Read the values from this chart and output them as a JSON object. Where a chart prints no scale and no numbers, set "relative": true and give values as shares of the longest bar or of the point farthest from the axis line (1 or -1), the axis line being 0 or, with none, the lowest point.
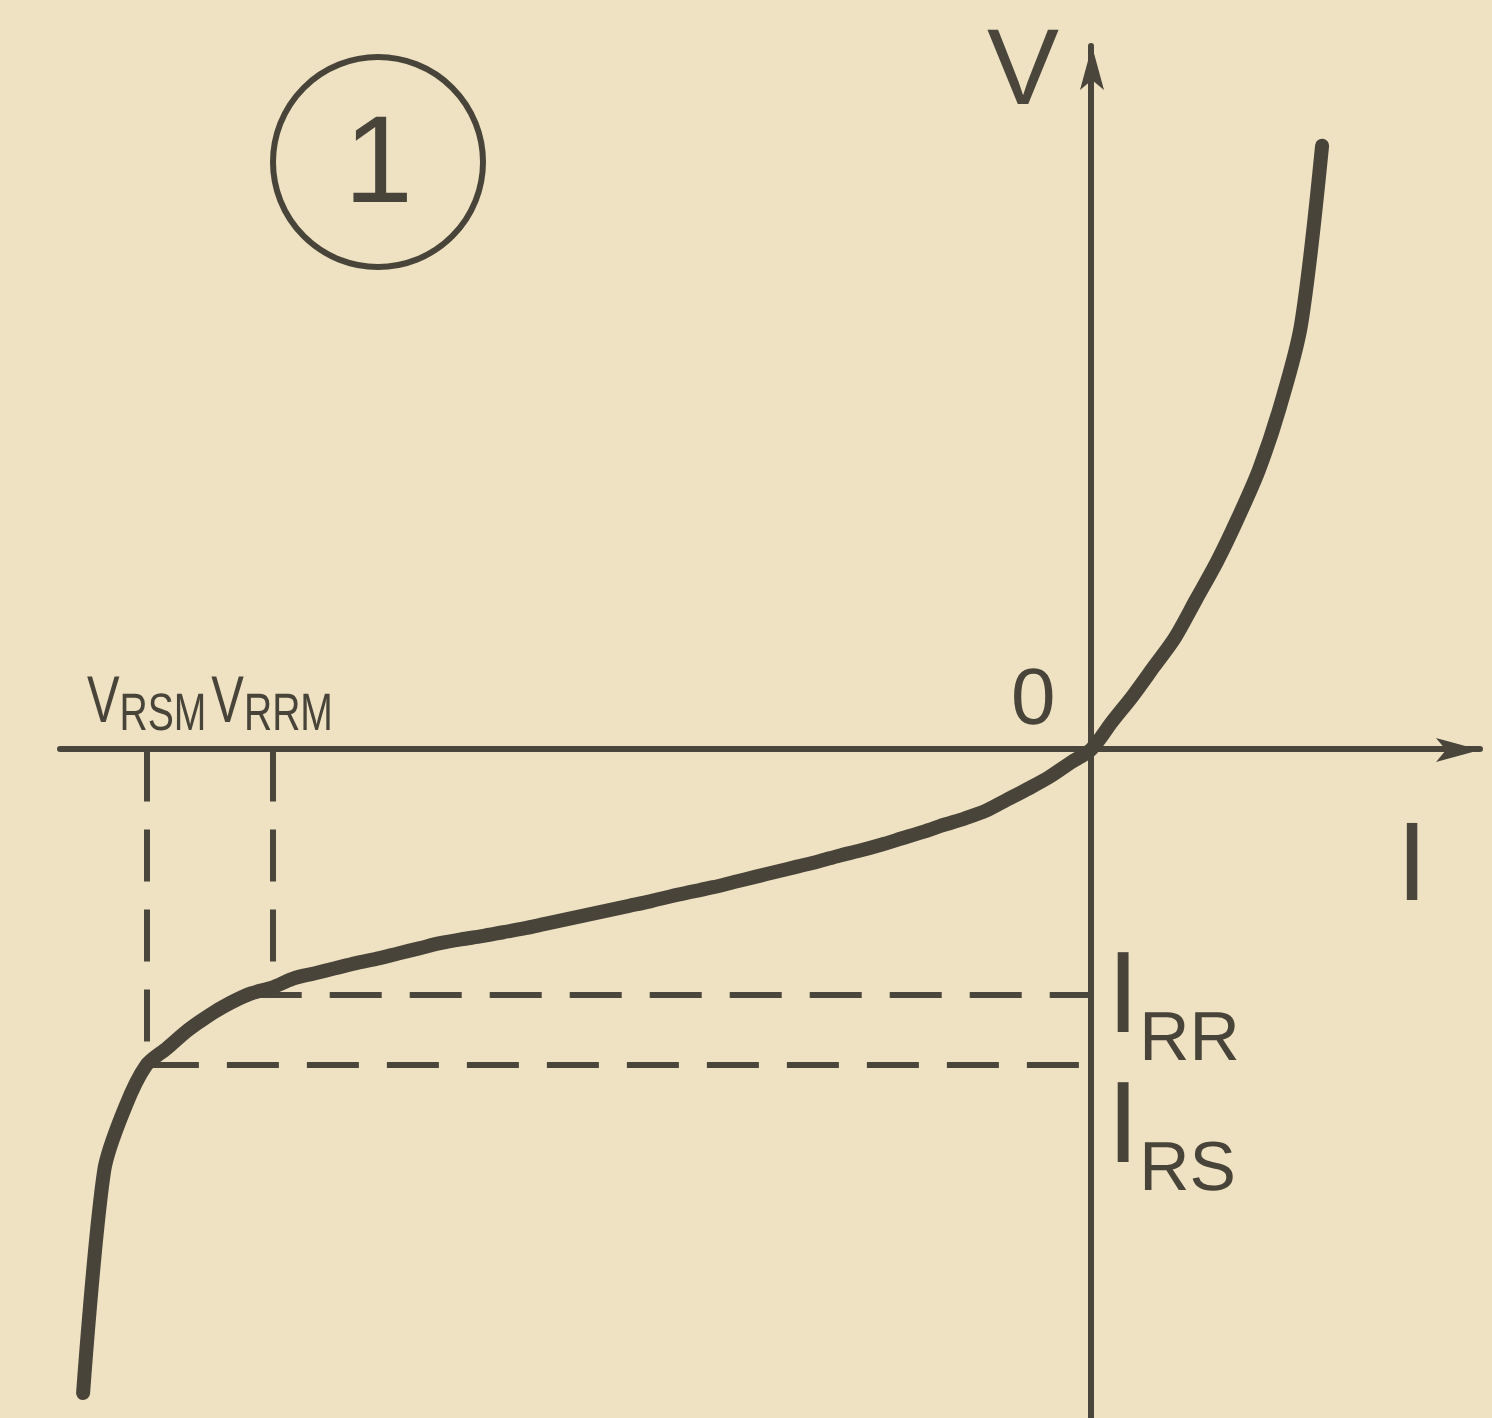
{
  "chart_data": {
    "type": "line",
    "title": "1",
    "xlabel": "I",
    "ylabel": "V",
    "relative": true,
    "tick_labels": "x",
    "categories": [
      null,
      null,
      null,
      "V$_{RSM}$",
      null,
      null,
      null,
      null,
      null,
      "V$_{RRM}$",
      null,
      null,
      null,
      null,
      null,
      null,
      null,
      null,
      null,
      null,
      null,
      null,
      null,
      null,
      null,
      null,
      null,
      null,
      null,
      null,
      null,
      null,
      null,
      null,
      null,
      null,
      null,
      null,
      null,
      null,
      null,
      null,
      null,
      null,
      null,
      null,
      null,
      null,
      null,
      null,
      null,
      null,
      null,
      null,
      null,
      null,
      null,
      null,
      null,
      null
    ],
    "series": [
      {
        "color": "#48443a",
        "values": [
          -1,
          -0.655,
          -0.556,
          -0.491,
          -0.464,
          -0.436,
          -0.413,
          -0.394,
          -0.379,
          -0.37,
          -0.356,
          -0.348,
          -0.34,
          -0.332,
          -0.325,
          -0.317,
          -0.309,
          -0.301,
          -0.295,
          -0.29,
          -0.284,
          -0.278,
          -0.271,
          -0.264,
          -0.257,
          -0.25,
          -0.243,
          -0.236,
          -0.228,
          -0.221,
          -0.214,
          -0.206,
          -0.198,
          -0.19,
          -0.182,
          -0.174,
          -0.165,
          -0.157,
          -0.148,
          -0.138,
          -0.128,
          -0.117,
          -0.107,
          -0.095,
          -0.078,
          -0.061,
          -0.043,
          -0.021,
          0,
          0.043,
          0.084,
          0.129,
          0.174,
          0.233,
          0.292,
          0.36,
          0.435,
          0.533,
          0.66,
          0.938
        ]
      }
    ],
    "annotations": [
      "0"
    ],
    "ref_lines": [
      {
        "axis": "x",
        "value": "V$_{RSM}$",
        "line_style": "dashed",
        "color": "#4a463c"
      },
      {
        "axis": "x",
        "value": "V$_{RRM}$",
        "line_style": "dashed",
        "color": "#4a463c"
      },
      {
        "axis": "y",
        "value": -0.38,
        "label": "I$_{RR}$",
        "line_style": "dashed",
        "color": "#4a463c"
      },
      {
        "axis": "y",
        "value": -0.49,
        "label": "I$_{RS}$",
        "line_style": "dashed",
        "color": "#4a463c"
      }
    ]
  }
}
